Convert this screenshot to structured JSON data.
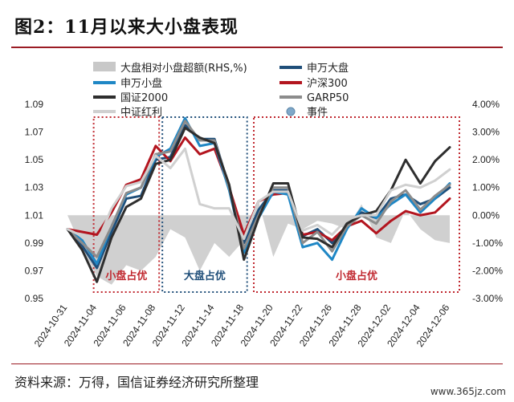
{
  "title": "图2：11月以来大小盘表现",
  "source": "资料来源：万得，国信证券经济研究所整理",
  "watermark": "www.365jz.com",
  "chart_data": {
    "type": "line",
    "x": [
      "2024-10-31",
      "2024-11-01",
      "2024-11-04",
      "2024-11-05",
      "2024-11-06",
      "2024-11-07",
      "2024-11-08",
      "2024-11-11",
      "2024-11-12",
      "2024-11-13",
      "2024-11-14",
      "2024-11-15",
      "2024-11-18",
      "2024-11-19",
      "2024-11-20",
      "2024-11-21",
      "2024-11-22",
      "2024-11-25",
      "2024-11-26",
      "2024-11-27",
      "2024-11-28",
      "2024-11-29",
      "2024-12-02",
      "2024-12-03",
      "2024-12-04",
      "2024-12-05",
      "2024-12-06"
    ],
    "x_tick_labels": [
      "2024-10-31",
      "2024-11-04",
      "2024-11-06",
      "2024-11-08",
      "2024-11-12",
      "2024-11-14",
      "2024-11-18",
      "2024-11-20",
      "2024-11-22",
      "2024-11-26",
      "2024-11-28",
      "2024-12-02",
      "2024-12-04",
      "2024-12-06"
    ],
    "y_left_ticks": [
      "0.95",
      "0.97",
      "0.99",
      "1.01",
      "1.03",
      "1.05",
      "1.07",
      "1.09"
    ],
    "y_right_ticks": [
      "4.00%",
      "3.00%",
      "2.00%",
      "1.00%",
      "0.00%",
      "-1.00%",
      "-2.00%",
      "-3.00%"
    ],
    "ylim_left": [
      0.95,
      1.09
    ],
    "ylim_right": [
      -3.0,
      4.0
    ],
    "series": [
      {
        "name": "大盘相对小盘超额(RHS,%)",
        "kind": "area",
        "axis": "right",
        "color": "#c8c8c8",
        "values": [
          0.0,
          -1.2,
          -2.2,
          -2.5,
          -1.8,
          -2.0,
          -1.5,
          -0.5,
          -0.8,
          -2.0,
          -1.0,
          -1.5,
          -0.9,
          0.5,
          -1.5,
          -0.3,
          -0.5,
          -0.2,
          -0.3,
          -0.5,
          0.4,
          -0.8,
          -1.0,
          0.2,
          -0.5,
          -0.9,
          -1.0
        ]
      },
      {
        "name": "申万大盘",
        "kind": "line",
        "axis": "left",
        "color": "#1f4e79",
        "values": [
          1.0,
          0.988,
          0.972,
          0.998,
          1.022,
          1.024,
          1.05,
          1.052,
          1.075,
          1.065,
          1.065,
          1.03,
          0.99,
          1.014,
          1.028,
          1.028,
          0.995,
          1.0,
          0.99,
          1.002,
          1.012,
          1.008,
          1.022,
          1.025,
          1.018,
          1.022,
          1.03
        ]
      },
      {
        "name": "沪深300",
        "kind": "line",
        "axis": "left",
        "color": "#b3151f",
        "values": [
          1.0,
          0.998,
          0.996,
          1.012,
          1.032,
          1.036,
          1.06,
          1.049,
          1.066,
          1.054,
          1.058,
          1.03,
          0.996,
          1.02,
          1.025,
          1.026,
          0.996,
          0.998,
          0.992,
          1.002,
          1.006,
          0.997,
          1.006,
          1.013,
          1.01,
          1.012,
          1.022
        ]
      },
      {
        "name": "申万小盘",
        "kind": "line",
        "axis": "left",
        "color": "#1f87c5",
        "values": [
          1.0,
          0.992,
          0.975,
          1.002,
          1.025,
          1.03,
          1.052,
          1.058,
          1.08,
          1.06,
          1.062,
          1.028,
          0.983,
          1.008,
          1.027,
          1.025,
          0.987,
          0.99,
          0.978,
          1.0,
          1.015,
          1.008,
          1.018,
          1.025,
          1.012,
          1.022,
          1.033
        ]
      },
      {
        "name": "GARP50",
        "kind": "line",
        "axis": "left",
        "color": "#8c8c8c",
        "values": [
          1.0,
          0.99,
          0.98,
          1.002,
          1.026,
          1.03,
          1.054,
          1.056,
          1.078,
          1.064,
          1.064,
          1.03,
          0.986,
          1.01,
          1.03,
          1.03,
          0.99,
          0.998,
          0.984,
          1.002,
          1.01,
          1.004,
          1.02,
          1.028,
          1.014,
          1.024,
          1.032
        ]
      },
      {
        "name": "国证2000",
        "kind": "line",
        "axis": "left",
        "color": "#2e2e2e",
        "values": [
          1.0,
          0.985,
          0.962,
          0.994,
          1.016,
          1.022,
          1.047,
          1.05,
          1.073,
          1.066,
          1.062,
          1.032,
          0.978,
          1.008,
          1.033,
          1.033,
          0.994,
          0.993,
          0.987,
          1.004,
          1.01,
          1.013,
          1.028,
          1.05,
          1.033,
          1.049,
          1.059
        ]
      },
      {
        "name": "中证红利",
        "kind": "line",
        "axis": "left",
        "color": "#d0d0d0",
        "values": [
          1.0,
          0.995,
          0.99,
          1.015,
          1.031,
          1.034,
          1.053,
          1.044,
          1.058,
          1.018,
          1.015,
          1.015,
          0.993,
          1.02,
          1.027,
          1.027,
          0.999,
          1.003,
          0.996,
          1.007,
          1.01,
          1.01,
          1.028,
          1.032,
          1.03,
          1.035,
          1.043
        ]
      }
    ],
    "event_legend": "事件",
    "event_color": "#7fa8c9",
    "regions": [
      {
        "label": "小盘占优",
        "color": "#c0282f",
        "from": "2024-11-04",
        "to": "2024-11-11"
      },
      {
        "label": "大盘占优",
        "color": "#1f4e79",
        "from": "2024-11-11",
        "to": "2024-11-18"
      },
      {
        "label": "小盘占优",
        "color": "#c0282f",
        "from": "2024-11-19",
        "to": "2024-12-06"
      }
    ],
    "legend_position": "top"
  }
}
